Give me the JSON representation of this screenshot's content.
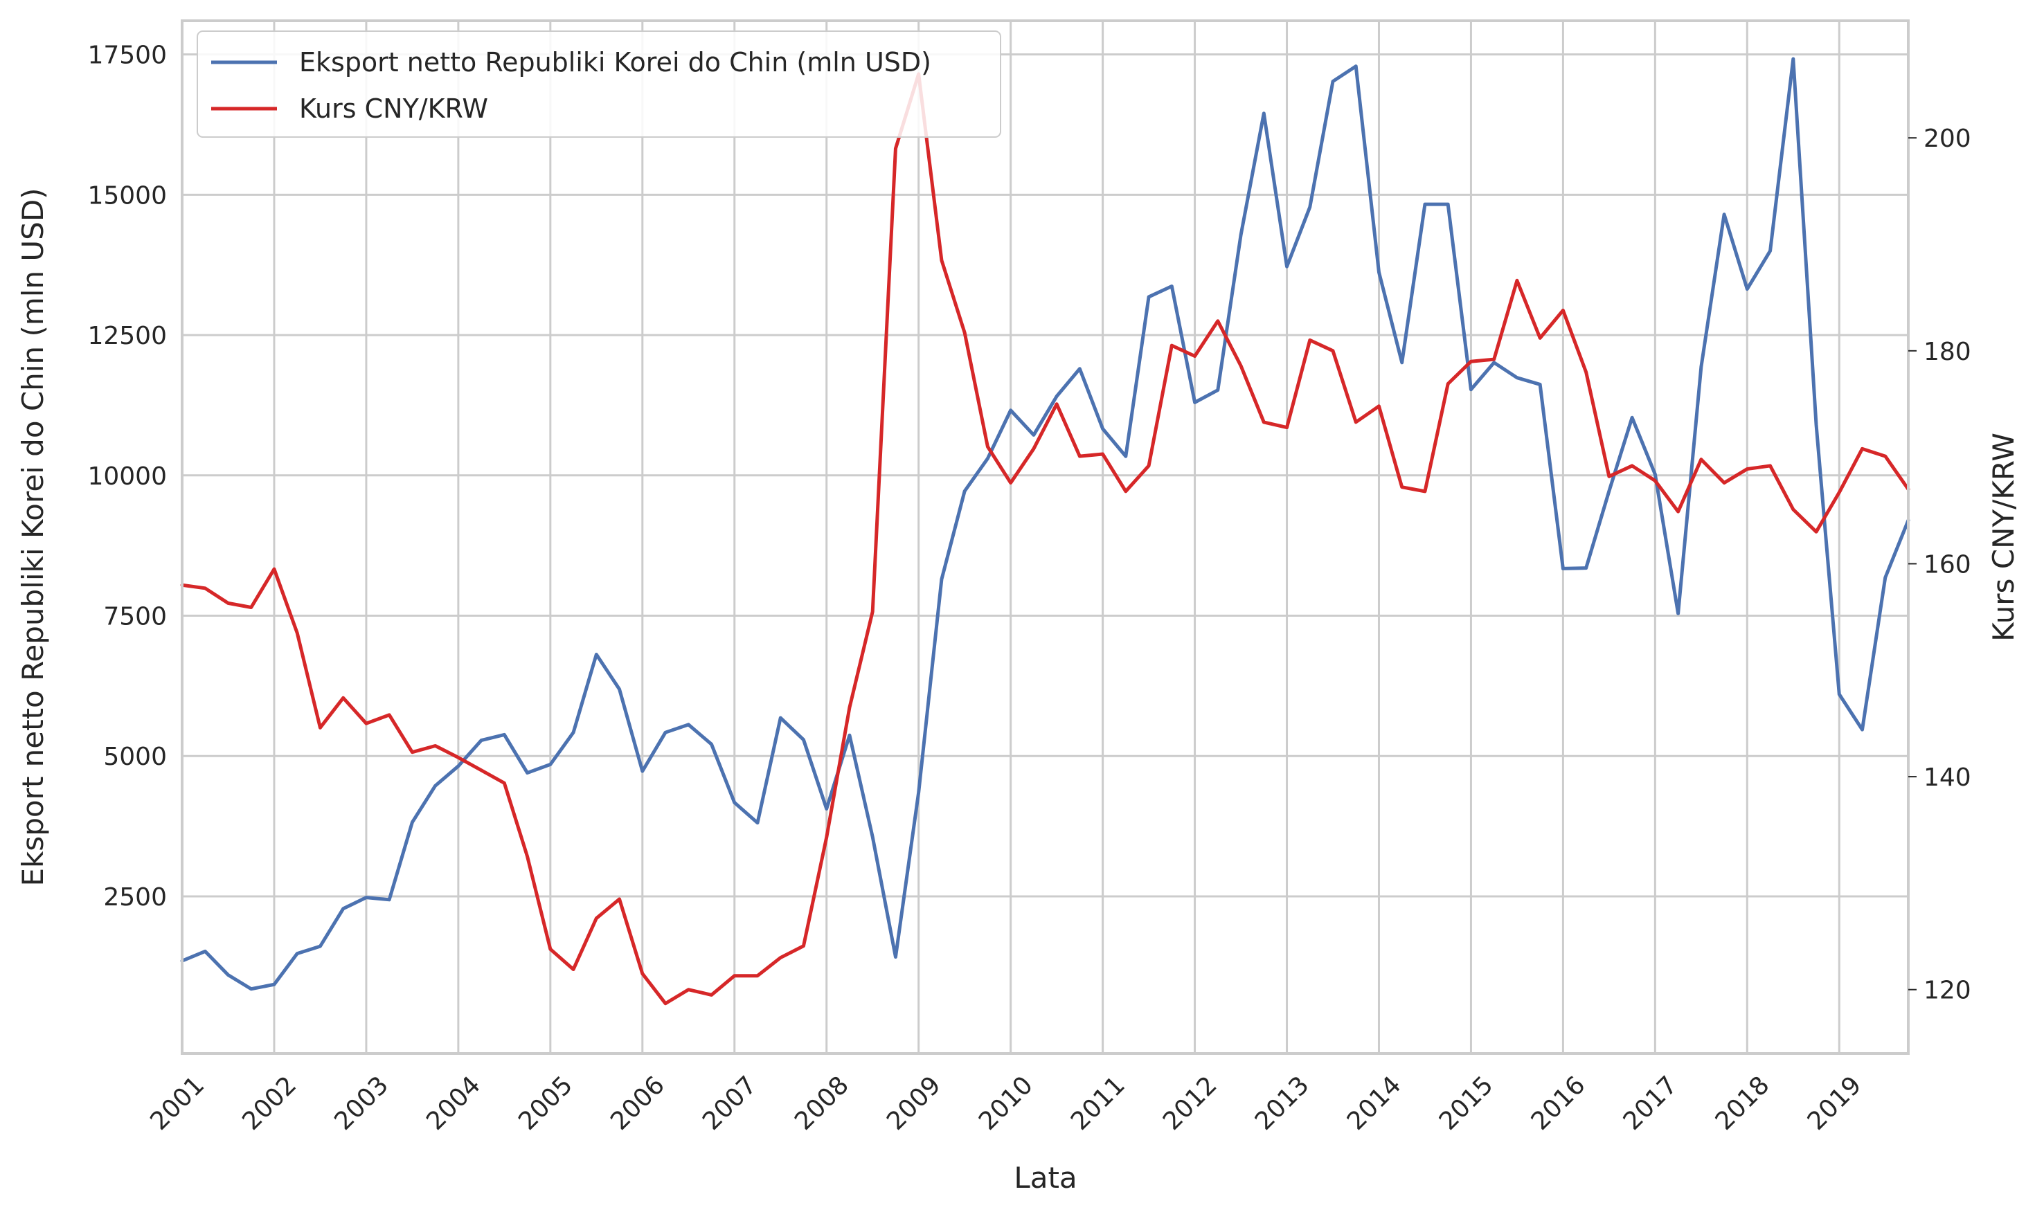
{
  "chart_data": {
    "type": "line",
    "title": "",
    "xlabel": "Lata",
    "ylabel_left": "Eksport netto Republiki Korei do Chin (mln USD)",
    "ylabel_right": "Kurs CNY/KRW",
    "x_tick_labels": [
      "2001",
      "2002",
      "2003",
      "2004",
      "2005",
      "2006",
      "2007",
      "2008",
      "2009",
      "2010",
      "2011",
      "2012",
      "2013",
      "2014",
      "2015",
      "2016",
      "2017",
      "2018",
      "2019"
    ],
    "x_range": [
      2001.0,
      2019.75
    ],
    "y_left_ticks": [
      2500,
      5000,
      7500,
      10000,
      12500,
      15000,
      17500
    ],
    "y_left_range": [
      -300,
      18100
    ],
    "y_right_ticks": [
      120,
      140,
      160,
      180,
      200
    ],
    "y_right_range": [
      114,
      211
    ],
    "legend_position": "top-left",
    "grid": true,
    "x": [
      2001.0,
      2001.25,
      2001.5,
      2001.75,
      2002.0,
      2002.25,
      2002.5,
      2002.75,
      2003.0,
      2003.25,
      2003.5,
      2003.75,
      2004.0,
      2004.25,
      2004.5,
      2004.75,
      2005.0,
      2005.25,
      2005.5,
      2005.75,
      2006.0,
      2006.25,
      2006.5,
      2006.75,
      2007.0,
      2007.25,
      2007.5,
      2007.75,
      2008.0,
      2008.25,
      2008.5,
      2008.75,
      2009.0,
      2009.25,
      2009.5,
      2009.75,
      2010.0,
      2010.25,
      2010.5,
      2010.75,
      2011.0,
      2011.25,
      2011.5,
      2011.75,
      2012.0,
      2012.25,
      2012.5,
      2012.75,
      2013.0,
      2013.25,
      2013.5,
      2013.75,
      2014.0,
      2014.25,
      2014.5,
      2014.75,
      2015.0,
      2015.25,
      2015.5,
      2015.75,
      2016.0,
      2016.25,
      2016.5,
      2016.75,
      2017.0,
      2017.25,
      2017.5,
      2017.75,
      2018.0,
      2018.25,
      2018.5,
      2018.75,
      2019.0,
      2019.25,
      2019.5,
      2019.75
    ],
    "series": [
      {
        "name": "Eksport netto Republiki Korei do Chin (mln USD)",
        "color": "#4c72b0",
        "axis": "left",
        "values": [
          1350,
          1520,
          1100,
          850,
          930,
          1480,
          1610,
          2280,
          2480,
          2440,
          3820,
          4470,
          4820,
          5280,
          5380,
          4700,
          4850,
          5420,
          6810,
          6190,
          4730,
          5420,
          5560,
          5210,
          4170,
          3810,
          5680,
          5290,
          4060,
          5370,
          3560,
          1420,
          4350,
          8150,
          9720,
          10300,
          11160,
          10720,
          11410,
          11900,
          10830,
          10340,
          13180,
          13370,
          11300,
          11520,
          14280,
          16450,
          13720,
          14780,
          17020,
          17290,
          13620,
          12010,
          14830,
          14830,
          11530,
          12010,
          11740,
          11620,
          8340,
          8350,
          9720,
          11030,
          10020,
          7540,
          11930,
          14650,
          13320,
          14000,
          17420,
          10900,
          6100,
          5470,
          8180,
          9200
        ]
      },
      {
        "name": "Kurs CNY/KRW",
        "color": "#d62728",
        "axis": "right",
        "values": [
          158.0,
          157.7,
          156.3,
          155.9,
          159.5,
          153.5,
          144.6,
          147.4,
          145.0,
          145.8,
          142.3,
          142.9,
          141.8,
          140.6,
          139.4,
          132.5,
          123.8,
          121.9,
          126.7,
          128.5,
          121.5,
          118.7,
          120.0,
          119.5,
          121.3,
          121.3,
          123.0,
          124.1,
          134.3,
          146.5,
          155.5,
          199.0,
          206.0,
          188.5,
          181.7,
          171.0,
          167.6,
          170.8,
          175.0,
          170.1,
          170.3,
          166.8,
          169.2,
          180.5,
          179.5,
          182.8,
          178.6,
          173.3,
          172.8,
          181.0,
          180.0,
          173.3,
          174.8,
          167.2,
          166.8,
          176.9,
          179.0,
          179.2,
          186.6,
          181.2,
          183.8,
          178.0,
          168.2,
          169.2,
          167.8,
          164.9,
          169.8,
          167.6,
          168.9,
          169.2,
          165.1,
          163.0,
          166.7,
          170.8,
          170.1,
          167.0
        ]
      }
    ]
  }
}
